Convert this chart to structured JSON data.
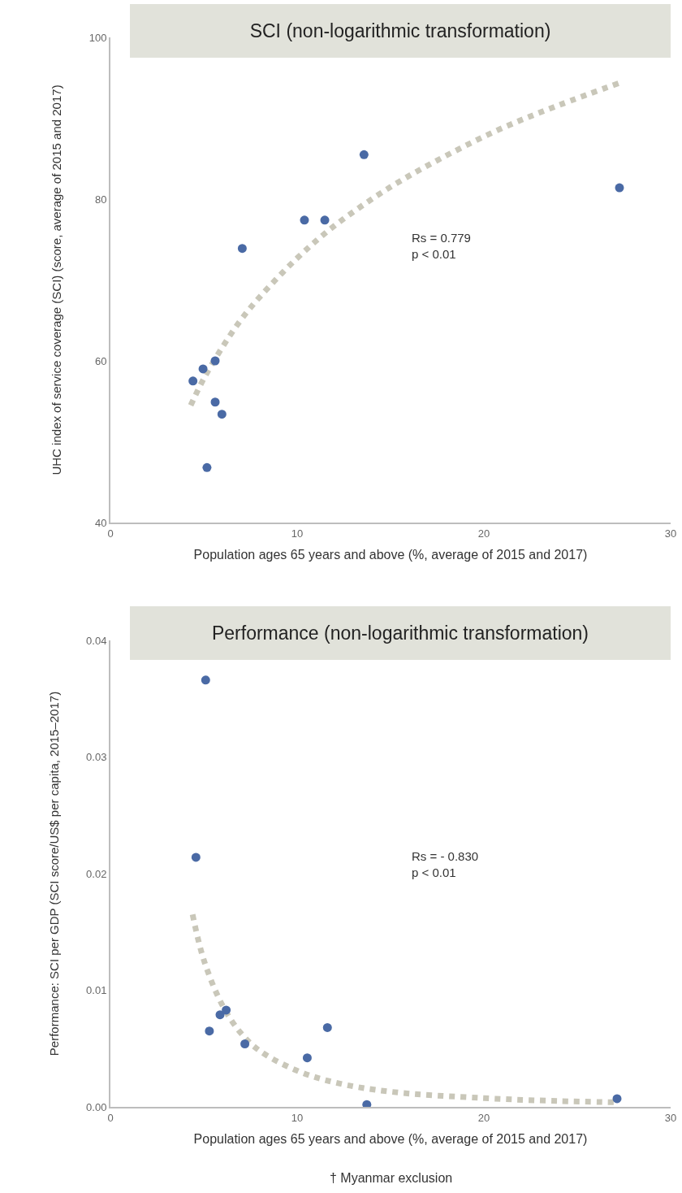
{
  "chart_data": [
    {
      "type": "scatter",
      "title": "SCI (non-logarithmic transformation)",
      "xlabel": "Population ages 65 years and above (%, average of 2015 and 2017)",
      "ylabel": "UHC index of service coverage (SCI) (score, average of 2015 and 2017)",
      "annotations": [
        "Rs = 0.779\np < 0.01"
      ],
      "xlim": [
        0,
        30
      ],
      "xticks": [
        0,
        10,
        20,
        30
      ],
      "ylim": [
        40,
        100
      ],
      "yticks": [
        40,
        60,
        80,
        100
      ],
      "grid": false,
      "series": [
        {
          "marker": "circle",
          "color": "#4a6aa5",
          "x": [
            13.58,
            10.39,
            11.48,
            7.06,
            5.61,
            4.96,
            4.42,
            5.61,
            5.97,
            5.17,
            27.26
          ],
          "values": [
            85.5,
            77.4,
            77.4,
            73.9,
            60.0,
            59.0,
            57.5,
            54.9,
            53.4,
            46.8,
            81.4
          ]
        },
        {
          "type": "line",
          "line_style": "dotted",
          "marker": "none",
          "color": "#c9c7b9",
          "x": [
            4.3,
            5,
            6,
            7,
            8,
            10,
            12,
            15,
            18,
            21,
            24,
            27.3
          ],
          "values": [
            54.5,
            57.8,
            61.7,
            65.1,
            67.9,
            72.7,
            76.7,
            81.5,
            85.4,
            88.8,
            91.6,
            94.4
          ]
        }
      ]
    },
    {
      "type": "scatter",
      "title": "Performance (non-logarithmic transformation)",
      "xlabel": "Population ages 65 years and above (%, average of 2015 and 2017)",
      "ylabel": "Performance: SCI per GDP (SCI score/US$ per capita, 2015–2017)",
      "annotations": [
        "Rs = - 0.830\np < 0.01",
        "† Myanmar exclusion"
      ],
      "xlim": [
        0,
        30
      ],
      "xticks": [
        0,
        10,
        20,
        30
      ],
      "ylim": [
        0,
        0.04
      ],
      "yticks": [
        {
          "value": 0,
          "label": "0.00"
        },
        0.01,
        0.02,
        0.03,
        0.04
      ],
      "grid": false,
      "series": [
        {
          "marker": "circle",
          "color": "#4a6aa5",
          "x": [
            5.1,
            4.58,
            5.87,
            6.2,
            5.3,
            7.2,
            11.62,
            10.54,
            13.73,
            27.13
          ],
          "values": [
            0.0366,
            0.0214,
            0.0079,
            0.0083,
            0.0065,
            0.0054,
            0.0068,
            0.0042,
            0.0002,
            0.0007
          ]
        },
        {
          "type": "line",
          "line_style": "dotted",
          "marker": "none",
          "color": "#c9c7b9",
          "x": [
            4.4,
            5,
            6,
            7,
            8,
            10,
            12,
            15,
            20,
            24,
            27
          ],
          "values": [
            0.0165,
            0.0126,
            0.0087,
            0.0063,
            0.0048,
            0.0031,
            0.0021,
            0.0013,
            0.00075,
            0.0005,
            0.0004
          ]
        }
      ]
    }
  ]
}
